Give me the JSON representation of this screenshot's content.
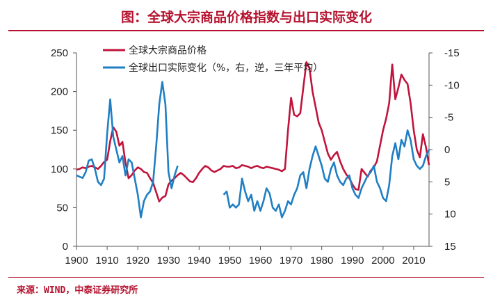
{
  "header": {
    "title": "图：全球大宗商品价格指数与出口实际变化"
  },
  "footer": {
    "source": "来源：WIND，中泰证券研究所"
  },
  "chart_data": {
    "type": "line",
    "title": "图：全球大宗商品价格指数与出口实际变化",
    "legend_position": "top-left",
    "grid": false,
    "x_axis": {
      "min": 1900,
      "max": 2015,
      "ticks": [
        1900,
        1910,
        1920,
        1930,
        1940,
        1950,
        1960,
        1970,
        1980,
        1990,
        2000,
        2010
      ]
    },
    "y_left": {
      "min": 0,
      "max": 250,
      "ticks": [
        0,
        50,
        100,
        150,
        200,
        250
      ]
    },
    "y_right": {
      "min": 15,
      "max": -15,
      "inverted": true,
      "ticks": [
        15,
        10,
        5,
        0,
        -5,
        -10,
        -15
      ]
    },
    "colors": {
      "commodity": "#c0143c",
      "exports": "#1f7fc4"
    },
    "series": [
      {
        "name": "全球大宗商品价格",
        "axis": "left",
        "segments": [
          [
            [
              1900,
              99
            ],
            [
              1901,
              100
            ],
            [
              1902,
              102
            ],
            [
              1903,
              101
            ],
            [
              1904,
              103
            ],
            [
              1905,
              104
            ],
            [
              1906,
              102
            ],
            [
              1907,
              100
            ],
            [
              1908,
              104
            ],
            [
              1909,
              109
            ],
            [
              1910,
              112
            ],
            [
              1911,
              136
            ],
            [
              1912,
              154
            ],
            [
              1913,
              148
            ],
            [
              1914,
              130
            ],
            [
              1915,
              135
            ],
            [
              1916,
              108
            ],
            [
              1917,
              88
            ],
            [
              1918,
              92
            ],
            [
              1919,
              98
            ],
            [
              1920,
              102
            ],
            [
              1921,
              100
            ],
            [
              1922,
              96
            ],
            [
              1923,
              95
            ],
            [
              1924,
              88
            ],
            [
              1925,
              82
            ],
            [
              1926,
              70
            ],
            [
              1927,
              58
            ],
            [
              1928,
              63
            ],
            [
              1929,
              65
            ],
            [
              1930,
              80
            ],
            [
              1931,
              85
            ],
            [
              1932,
              88
            ],
            [
              1933,
              92
            ],
            [
              1934,
              95
            ],
            [
              1935,
              92
            ],
            [
              1936,
              88
            ],
            [
              1937,
              84
            ],
            [
              1938,
              83
            ],
            [
              1939,
              88
            ],
            [
              1940,
              95
            ],
            [
              1941,
              100
            ],
            [
              1942,
              104
            ],
            [
              1943,
              102
            ],
            [
              1944,
              98
            ],
            [
              1945,
              96
            ],
            [
              1946,
              98
            ],
            [
              1947,
              100
            ],
            [
              1948,
              104
            ],
            [
              1949,
              103
            ],
            [
              1950,
              103
            ],
            [
              1951,
              104
            ],
            [
              1952,
              101
            ],
            [
              1953,
              102
            ],
            [
              1954,
              105
            ],
            [
              1955,
              104
            ],
            [
              1956,
              103
            ],
            [
              1957,
              101
            ],
            [
              1958,
              103
            ],
            [
              1959,
              104
            ],
            [
              1960,
              102
            ],
            [
              1961,
              101
            ],
            [
              1962,
              103
            ],
            [
              1963,
              102
            ],
            [
              1964,
              101
            ],
            [
              1965,
              100
            ],
            [
              1966,
              99
            ],
            [
              1967,
              97
            ],
            [
              1968,
              100
            ],
            [
              1969,
              150
            ],
            [
              1970,
              192
            ],
            [
              1971,
              170
            ],
            [
              1972,
              168
            ],
            [
              1973,
              172
            ],
            [
              1974,
              205
            ],
            [
              1975,
              238
            ],
            [
              1976,
              230
            ],
            [
              1977,
              200
            ],
            [
              1978,
              180
            ],
            [
              1979,
              160
            ],
            [
              1980,
              150
            ],
            [
              1981,
              135
            ],
            [
              1982,
              120
            ],
            [
              1983,
              112
            ],
            [
              1984,
              118
            ],
            [
              1985,
              122
            ],
            [
              1986,
              110
            ],
            [
              1987,
              100
            ],
            [
              1988,
              93
            ],
            [
              1989,
              88
            ],
            [
              1990,
              80
            ],
            [
              1991,
              74
            ],
            [
              1992,
              73
            ],
            [
              1993,
              100
            ],
            [
              1994,
              95
            ],
            [
              1995,
              90
            ],
            [
              1996,
              98
            ],
            [
              1997,
              102
            ],
            [
              1998,
              110
            ],
            [
              1999,
              130
            ],
            [
              2000,
              150
            ],
            [
              2001,
              165
            ],
            [
              2002,
              185
            ],
            [
              2003,
              235
            ],
            [
              2004,
              190
            ],
            [
              2005,
              205
            ],
            [
              2006,
              222
            ],
            [
              2007,
              215
            ],
            [
              2008,
              210
            ],
            [
              2009,
              185
            ],
            [
              2010,
              150
            ],
            [
              2011,
              125
            ],
            [
              2012,
              115
            ],
            [
              2013,
              145
            ],
            [
              2014,
              128
            ],
            [
              2015,
              105
            ]
          ]
        ]
      },
      {
        "name": "全球出口实际变化（%，右，逆，三年平均）",
        "axis": "right",
        "segments": [
          [
            [
              1900,
              4.0
            ],
            [
              1901,
              4.2
            ],
            [
              1902,
              4.4
            ],
            [
              1903,
              3.5
            ],
            [
              1904,
              1.7
            ],
            [
              1905,
              1.5
            ],
            [
              1906,
              3.0
            ],
            [
              1907,
              5.0
            ],
            [
              1908,
              5.5
            ],
            [
              1909,
              4.5
            ],
            [
              1910,
              -2.5
            ],
            [
              1911,
              -7.8
            ],
            [
              1912,
              -2.0
            ],
            [
              1913,
              0.0
            ],
            [
              1914,
              2.0
            ],
            [
              1915,
              1.0
            ],
            [
              1916,
              4.0
            ],
            [
              1917,
              1.5
            ],
            [
              1918,
              2.0
            ],
            [
              1919,
              4.5
            ],
            [
              1920,
              7.0
            ],
            [
              1921,
              10.5
            ],
            [
              1922,
              8.0
            ],
            [
              1923,
              7.0
            ],
            [
              1924,
              6.5
            ],
            [
              1925,
              5.0
            ],
            [
              1926,
              -0.5
            ],
            [
              1927,
              -7.0
            ],
            [
              1928,
              -10.5
            ],
            [
              1929,
              -7.0
            ],
            [
              1930,
              3.5
            ],
            [
              1931,
              6.0
            ],
            [
              1932,
              4.0
            ],
            [
              1933,
              2.5
            ]
          ],
          [
            [
              1948,
              7.0
            ],
            [
              1949,
              6.5
            ],
            [
              1950,
              9.0
            ],
            [
              1951,
              8.5
            ],
            [
              1952,
              9.0
            ],
            [
              1953,
              8.5
            ],
            [
              1954,
              4.5
            ],
            [
              1955,
              6.5
            ],
            [
              1956,
              8.0
            ],
            [
              1957,
              7.0
            ],
            [
              1958,
              9.5
            ],
            [
              1959,
              8.0
            ],
            [
              1960,
              9.5
            ],
            [
              1961,
              8.0
            ],
            [
              1962,
              6.0
            ],
            [
              1963,
              6.8
            ],
            [
              1964,
              9.0
            ],
            [
              1965,
              9.5
            ],
            [
              1966,
              8.5
            ],
            [
              1967,
              10.5
            ],
            [
              1968,
              9.5
            ],
            [
              1969,
              8.0
            ],
            [
              1970,
              8.5
            ],
            [
              1971,
              7.0
            ],
            [
              1972,
              6.0
            ],
            [
              1973,
              4.0
            ],
            [
              1974,
              3.5
            ],
            [
              1975,
              6.0
            ],
            [
              1976,
              3.0
            ],
            [
              1977,
              1.0
            ],
            [
              1978,
              -0.5
            ],
            [
              1979,
              1.0
            ],
            [
              1980,
              2.5
            ],
            [
              1981,
              4.5
            ],
            [
              1982,
              5.0
            ],
            [
              1983,
              3.0
            ],
            [
              1984,
              2.0
            ],
            [
              1985,
              4.0
            ],
            [
              1986,
              5.0
            ],
            [
              1987,
              5.5
            ],
            [
              1988,
              4.5
            ],
            [
              1989,
              4.0
            ],
            [
              1990,
              6.0
            ],
            [
              1991,
              7.0
            ],
            [
              1992,
              7.5
            ],
            [
              1993,
              6.0
            ],
            [
              1994,
              5.0
            ],
            [
              1995,
              4.0
            ],
            [
              1996,
              3.5
            ],
            [
              1997,
              2.5
            ],
            [
              1998,
              5.0
            ],
            [
              1999,
              6.0
            ],
            [
              2000,
              7.5
            ],
            [
              2001,
              8.0
            ],
            [
              2002,
              5.5
            ],
            [
              2003,
              1.0
            ],
            [
              2004,
              -1.0
            ],
            [
              2005,
              1.5
            ],
            [
              2006,
              -1.5
            ],
            [
              2007,
              -0.5
            ],
            [
              2008,
              -3.0
            ],
            [
              2009,
              -1.5
            ],
            [
              2010,
              1.5
            ],
            [
              2011,
              2.5
            ],
            [
              2012,
              3.0
            ],
            [
              2013,
              2.5
            ],
            [
              2014,
              1.0
            ],
            [
              2015,
              0.0
            ]
          ]
        ]
      }
    ]
  }
}
